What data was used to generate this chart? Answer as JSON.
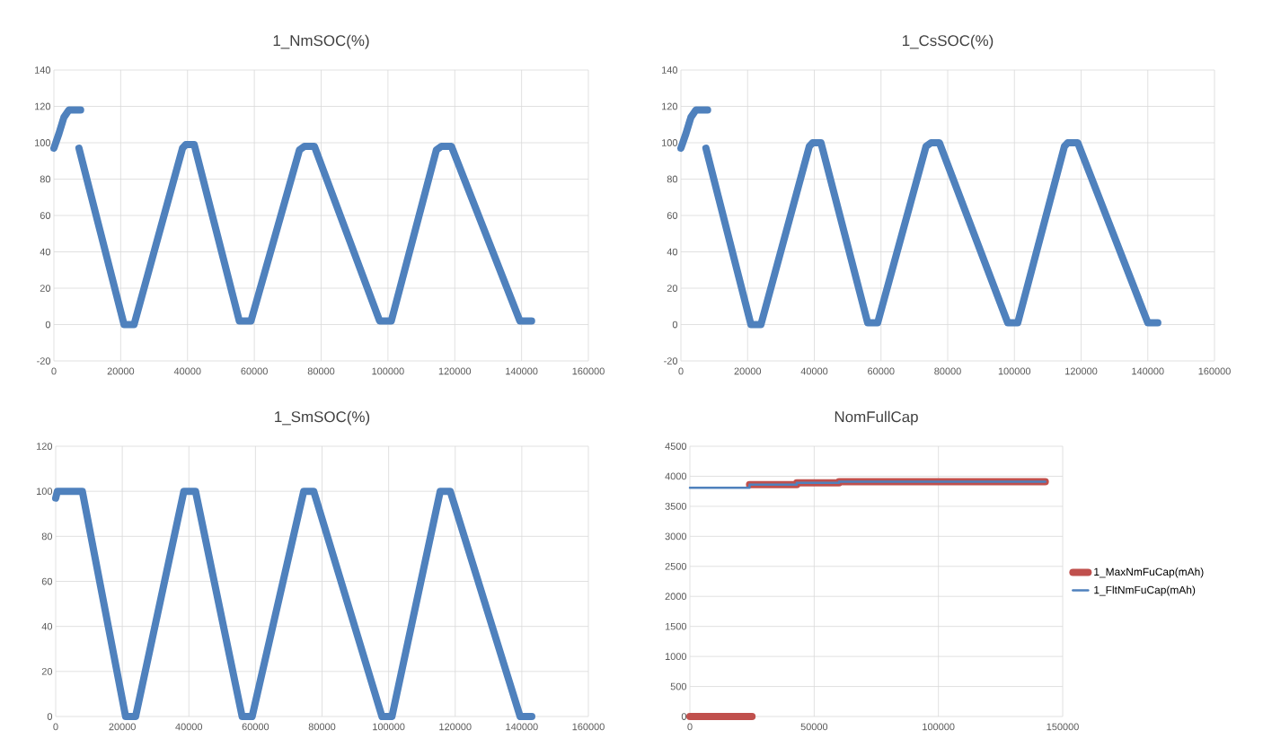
{
  "chart_data": [
    {
      "type": "line",
      "title": "1_NmSOC(%)",
      "xlim": [
        0,
        160000
      ],
      "xticks": [
        0,
        20000,
        40000,
        60000,
        80000,
        100000,
        120000,
        140000,
        160000
      ],
      "ylim": [
        -20,
        140
      ],
      "yticks": [
        -20,
        0,
        20,
        40,
        60,
        80,
        100,
        120,
        140
      ],
      "grid": true,
      "series": [
        {
          "color": "#4f81bd",
          "x": [
            0,
            1500,
            3000,
            4500,
            8000,
            null,
            7500,
            21000,
            24000,
            38500,
            39500,
            42000,
            55500,
            59000,
            73500,
            75000,
            78000,
            97500,
            101000,
            114500,
            116000,
            119000,
            139500,
            143000
          ],
          "values": [
            97,
            105,
            114,
            118,
            118,
            null,
            97,
            0,
            0,
            97,
            99,
            99,
            2,
            2,
            96,
            98,
            98,
            2,
            2,
            96,
            98,
            98,
            2,
            2
          ]
        }
      ]
    },
    {
      "type": "line",
      "title": "1_CsSOC(%)",
      "xlim": [
        0,
        160000
      ],
      "xticks": [
        0,
        20000,
        40000,
        60000,
        80000,
        100000,
        120000,
        140000,
        160000
      ],
      "ylim": [
        -20,
        140
      ],
      "yticks": [
        -20,
        0,
        20,
        40,
        60,
        80,
        100,
        120,
        140
      ],
      "grid": true,
      "series": [
        {
          "color": "#4f81bd",
          "x": [
            0,
            1500,
            3000,
            4500,
            8000,
            null,
            7500,
            21000,
            24000,
            38500,
            39500,
            42000,
            56000,
            59000,
            73500,
            75000,
            77500,
            98000,
            101000,
            115000,
            116000,
            119000,
            140000,
            143000
          ],
          "values": [
            97,
            105,
            114,
            118,
            118,
            null,
            97,
            0,
            0,
            98,
            100,
            100,
            1,
            1,
            98,
            100,
            100,
            1,
            1,
            98,
            100,
            100,
            1,
            1
          ]
        }
      ]
    },
    {
      "type": "line",
      "title": "1_SmSOC(%)",
      "xlim": [
        0,
        160000
      ],
      "xticks": [
        0,
        20000,
        40000,
        60000,
        80000,
        100000,
        120000,
        140000,
        160000
      ],
      "ylim": [
        0,
        120
      ],
      "yticks": [
        0,
        20,
        40,
        60,
        80,
        100,
        120
      ],
      "grid": true,
      "series": [
        {
          "color": "#4f81bd",
          "x": [
            0,
            500,
            8000,
            21000,
            24000,
            38500,
            42000,
            56000,
            59000,
            74500,
            77500,
            98000,
            101000,
            115500,
            118500,
            139500,
            143000
          ],
          "values": [
            97,
            100,
            100,
            0,
            0,
            100,
            100,
            0,
            0,
            100,
            100,
            0,
            0,
            100,
            100,
            0,
            0
          ]
        }
      ]
    },
    {
      "type": "line",
      "title": "NomFullCap",
      "xlim": [
        0,
        150000
      ],
      "xticks": [
        0,
        50000,
        100000,
        150000
      ],
      "ylim": [
        0,
        4500
      ],
      "yticks": [
        0,
        500,
        1000,
        1500,
        2000,
        2500,
        3000,
        3500,
        4000,
        4500
      ],
      "grid": true,
      "legend": "right",
      "series": [
        {
          "name": "1_MaxNmFuCap(mAh)",
          "color": "#c0504d",
          "x": [
            0,
            25000,
            null,
            24000,
            43000,
            43000,
            60000,
            60000,
            143000
          ],
          "values": [
            0,
            0,
            null,
            3860,
            3860,
            3890,
            3890,
            3910,
            3910
          ]
        },
        {
          "name": "1_FltNmFuCap(mAh)",
          "color": "#4f81bd",
          "x": [
            0,
            24000,
            24000,
            43000,
            43000,
            60000,
            60000,
            143000
          ],
          "values": [
            3810,
            3810,
            3860,
            3860,
            3890,
            3890,
            3910,
            3910
          ]
        }
      ]
    }
  ]
}
